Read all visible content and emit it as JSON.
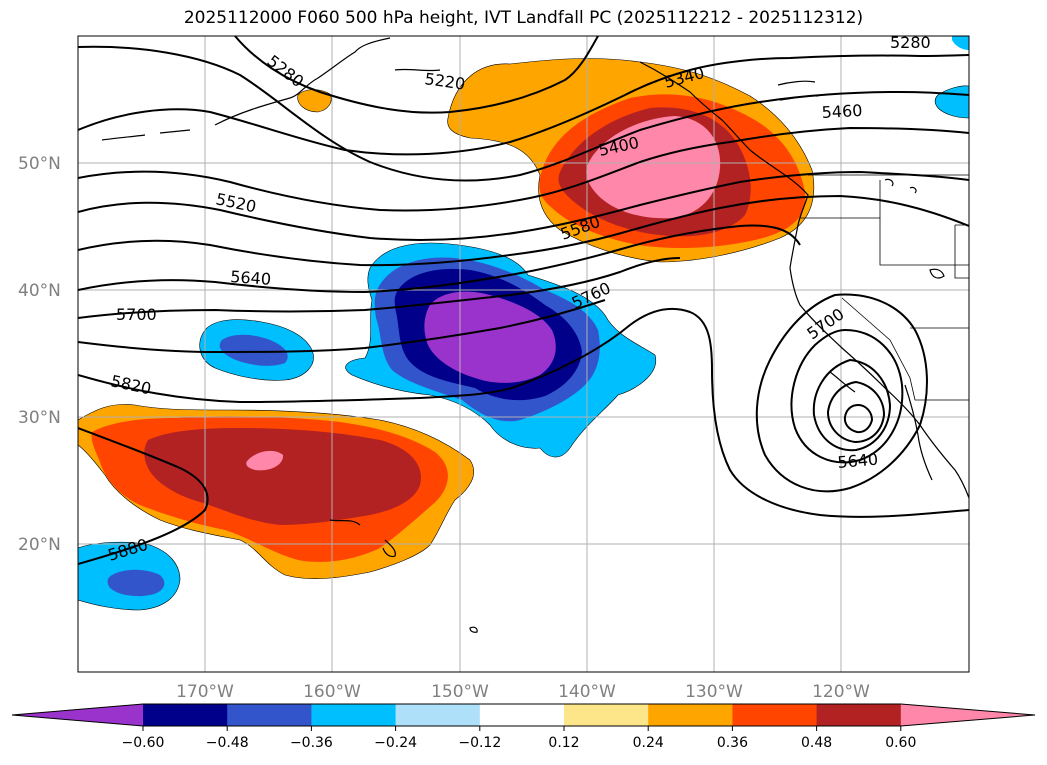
{
  "title": "2025112000 F060 500 hPa height, IVT Landfall PC (2025112212 - 2025112312)",
  "lat_labels": [
    "50°N",
    "40°N",
    "30°N",
    "20°N"
  ],
  "lon_labels": [
    "170°W",
    "160°W",
    "150°W",
    "140°W",
    "130°W",
    "120°W"
  ],
  "contour_labels": [
    "5280",
    "5220",
    "5280",
    "5340",
    "5400",
    "5460",
    "5520",
    "5580",
    "5640",
    "5700",
    "5760",
    "5820",
    "5880",
    "5700",
    "5640"
  ],
  "colorbar": {
    "colors": [
      "#9933cc",
      "#00008b",
      "#3355cc",
      "#00bfff",
      "#aee0fa",
      "#ffffff",
      "#fde68a",
      "#ffa500",
      "#ff4500",
      "#b22222",
      "#ff88aa"
    ],
    "tick_labels": [
      "−0.60",
      "−0.48",
      "−0.36",
      "−0.24",
      "−0.12",
      "0.12",
      "0.24",
      "0.36",
      "0.48",
      "0.60"
    ]
  }
}
